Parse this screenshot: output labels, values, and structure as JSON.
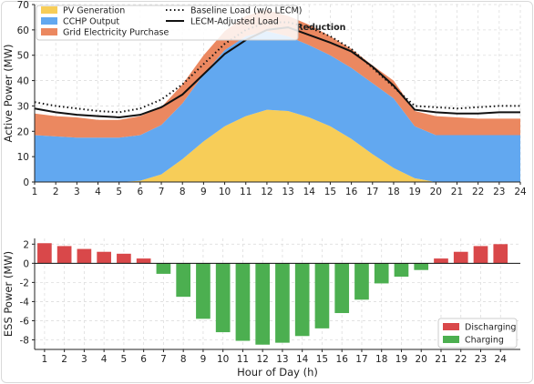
{
  "chart_data": [
    {
      "type": "area",
      "ylabel": "Active Power  (MW)",
      "x": [
        1,
        2,
        3,
        4,
        5,
        6,
        7,
        8,
        9,
        10,
        11,
        12,
        13,
        14,
        15,
        16,
        17,
        18,
        19,
        20,
        21,
        22,
        23,
        24
      ],
      "xlim": [
        1,
        24
      ],
      "ylim": [
        0,
        70
      ],
      "yticks": [
        0,
        10,
        20,
        30,
        40,
        50,
        60,
        70
      ],
      "grid": true,
      "legend": "top-left",
      "annotation": "Reduction",
      "stacked_series": [
        {
          "name": "PV Generation",
          "color": "#f7cd58",
          "values": [
            0,
            0,
            0,
            0,
            0,
            0.5,
            3,
            9,
            16,
            22,
            26,
            28.5,
            28,
            25.5,
            22,
            17,
            11,
            5.5,
            1.5,
            0,
            0,
            0,
            0,
            0
          ]
        },
        {
          "name": "CCHP Output",
          "color": "#62a8f0",
          "values": [
            18.5,
            18,
            17.5,
            17.5,
            17.5,
            18,
            19.5,
            22,
            26.5,
            30,
            31.5,
            31,
            29.5,
            28.5,
            28,
            28,
            28,
            27.5,
            20.5,
            18.5,
            18.5,
            18.5,
            18.5,
            18.5
          ]
        },
        {
          "name": "Grid Electricity Purchase",
          "color": "#eb8860",
          "values": [
            8.5,
            8,
            8,
            7,
            7,
            7.5,
            7,
            7.5,
            7.5,
            7.5,
            8,
            8.5,
            8,
            8,
            7.5,
            7.5,
            7,
            7,
            6,
            7.5,
            7,
            6.5,
            6.5,
            6.5
          ]
        }
      ],
      "line_series": [
        {
          "name": "Baseline Load (w/o LECM)",
          "style": "dotted",
          "color": "#111111",
          "values": [
            31.5,
            30,
            29,
            28,
            27.5,
            29,
            32.5,
            38.5,
            46.5,
            54.5,
            60,
            63,
            63,
            61,
            57.5,
            52.5,
            45,
            37.5,
            30,
            29.5,
            29,
            29.5,
            30,
            30
          ]
        },
        {
          "name": "LECM-Adjusted Load",
          "style": "solid",
          "color": "#111111",
          "values": [
            29,
            27.5,
            26.5,
            26,
            25.5,
            26.5,
            29.5,
            34.5,
            42.5,
            50.5,
            56,
            60,
            61,
            58,
            55,
            51.5,
            45.5,
            38,
            28.5,
            27.5,
            27,
            27,
            27.5,
            27.5
          ]
        }
      ]
    },
    {
      "type": "bar",
      "ylabel": "ESS Power  (MW)",
      "xlabel": "Hour of Day  (h)",
      "categories": [
        1,
        2,
        3,
        4,
        5,
        6,
        7,
        8,
        9,
        10,
        11,
        12,
        13,
        14,
        15,
        16,
        17,
        18,
        19,
        20,
        21,
        22,
        23,
        24
      ],
      "values": [
        2.1,
        1.8,
        1.5,
        1.2,
        1.0,
        0.5,
        -1.1,
        -3.5,
        -5.8,
        -7.2,
        -8.1,
        -8.5,
        -8.3,
        -7.6,
        -6.8,
        -5.2,
        -3.8,
        -2.1,
        -1.4,
        -0.7,
        0.5,
        1.2,
        1.8,
        2.0
      ],
      "ylim": [
        -9,
        2.6
      ],
      "yticks": [
        2,
        0,
        -2,
        -4,
        -6,
        -8
      ],
      "grid": true,
      "legend": "bottom-right",
      "series": [
        {
          "name": "Discharging",
          "color": "#d9484a"
        },
        {
          "name": "Charging",
          "color": "#4caf50"
        }
      ]
    }
  ]
}
